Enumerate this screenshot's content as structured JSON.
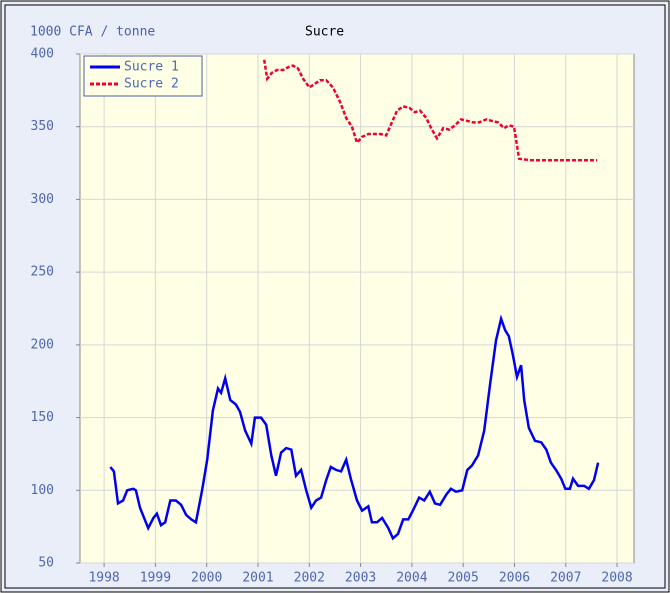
{
  "chart_data": {
    "type": "line",
    "title": "Sucre",
    "ylabel": "1000 CFA / tonne",
    "xlim": [
      1997.53,
      2008.33
    ],
    "xticks": [
      1998,
      1999,
      2000,
      2001,
      2002,
      2003,
      2004,
      2005,
      2006,
      2007,
      2008
    ],
    "ylim": [
      50,
      400
    ],
    "yticks": [
      50,
      100,
      150,
      200,
      250,
      300,
      350,
      400
    ],
    "grid": true,
    "legend": "top-left",
    "series": [
      {
        "name": "Sucre 1",
        "color": "#0000ee",
        "dash": false,
        "x": [
          1998.12,
          1998.19,
          1998.27,
          1998.37,
          1998.45,
          1998.57,
          1998.62,
          1998.7,
          1998.86,
          1998.96,
          1999.03,
          1999.11,
          1999.19,
          1999.29,
          1999.4,
          1999.5,
          1999.6,
          1999.7,
          1999.79,
          1999.91,
          2000.01,
          2000.12,
          2000.22,
          2000.28,
          2000.36,
          2000.46,
          2000.57,
          2000.65,
          2000.75,
          2000.87,
          2000.94,
          2001.06,
          2001.16,
          2001.26,
          2001.35,
          2001.45,
          2001.55,
          2001.65,
          2001.74,
          2001.84,
          2001.94,
          2002.04,
          2002.13,
          2002.23,
          2002.33,
          2002.42,
          2002.52,
          2002.62,
          2002.72,
          2002.81,
          2002.93,
          2003.03,
          2003.15,
          2003.22,
          2003.32,
          2003.42,
          2003.54,
          2003.63,
          2003.73,
          2003.83,
          2003.93,
          2004.02,
          2004.14,
          2004.24,
          2004.35,
          2004.45,
          2004.55,
          2004.67,
          2004.76,
          2004.86,
          2004.98,
          2005.08,
          2005.17,
          2005.29,
          2005.41,
          2005.52,
          2005.64,
          2005.74,
          2005.82,
          2005.89,
          2005.97,
          2006.05,
          2006.13,
          2006.19,
          2006.28,
          2006.4,
          2006.52,
          2006.62,
          2006.71,
          2006.81,
          2006.91,
          2006.99,
          2007.08,
          2007.14,
          2007.24,
          2007.36,
          2007.45,
          2007.55,
          2007.63
        ],
        "values": [
          116,
          113,
          91,
          93,
          100,
          101,
          100,
          88,
          74,
          81,
          84,
          76,
          78,
          93,
          93,
          90,
          83,
          80,
          78,
          100,
          121,
          155,
          170,
          167,
          177,
          162,
          159,
          154,
          141,
          132,
          150,
          150,
          145,
          124,
          110,
          126,
          129,
          128,
          110,
          114,
          100,
          88,
          93,
          95,
          107,
          116,
          114,
          113,
          121,
          108,
          93,
          86,
          89,
          78,
          78,
          81,
          74,
          67,
          70,
          80,
          80,
          86,
          95,
          93,
          99,
          91,
          90,
          97,
          101,
          99,
          100,
          114,
          117,
          124,
          141,
          172,
          203,
          218,
          210,
          206,
          193,
          178,
          186,
          162,
          143,
          134,
          133,
          128,
          119,
          114,
          108,
          101,
          101,
          108,
          103,
          103,
          101,
          107,
          119
        ]
      },
      {
        "name": "Sucre 2",
        "color": "#ee0033",
        "dash": true,
        "x": [
          2001.12,
          2001.18,
          2001.27,
          2001.37,
          2001.49,
          2001.59,
          2001.68,
          2001.78,
          2001.88,
          2002.0,
          2002.09,
          2002.21,
          2002.33,
          2002.46,
          2002.6,
          2002.72,
          2002.83,
          2002.93,
          2003.03,
          2003.15,
          2003.26,
          2003.38,
          2003.5,
          2003.61,
          2003.71,
          2003.83,
          2003.95,
          2004.06,
          2004.16,
          2004.28,
          2004.39,
          2004.49,
          2004.61,
          2004.73,
          2004.84,
          2004.96,
          2005.08,
          2005.19,
          2005.31,
          2005.45,
          2005.56,
          2005.68,
          2005.8,
          2005.89,
          2005.99,
          2006.09,
          2006.3,
          2006.89,
          2007.61
        ],
        "values": [
          396,
          383,
          387,
          389,
          389,
          391,
          392,
          390,
          383,
          377,
          379,
          382,
          382,
          377,
          367,
          356,
          350,
          339,
          343,
          345,
          345,
          345,
          344,
          353,
          361,
          364,
          363,
          360,
          361,
          356,
          348,
          342,
          349,
          348,
          351,
          355,
          354,
          353,
          353,
          355,
          354,
          353,
          349,
          351,
          350,
          328,
          327,
          327,
          327
        ]
      }
    ]
  }
}
